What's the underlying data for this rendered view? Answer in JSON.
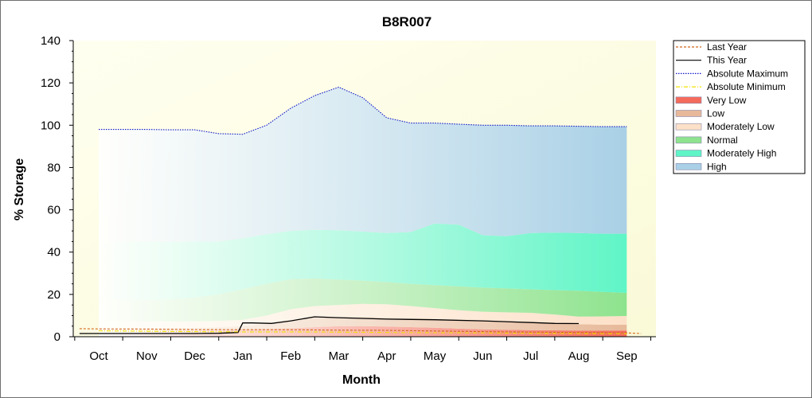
{
  "chart_data": {
    "type": "area",
    "title": "B8R007",
    "xlabel": "Month",
    "ylabel": "% Storage",
    "ylim": [
      0,
      140
    ],
    "yticks": [
      "0",
      "20",
      "40",
      "60",
      "80",
      "100",
      "120",
      "140"
    ],
    "categories": [
      "Oct",
      "Nov",
      "Dec",
      "Jan",
      "Feb",
      "Mar",
      "Apr",
      "May",
      "Jun",
      "Jul",
      "Aug",
      "Sep"
    ],
    "x": [
      0,
      0.5,
      1,
      1.5,
      2,
      2.5,
      3,
      3.5,
      4,
      4.5,
      5,
      5.5,
      6,
      6.5,
      7,
      7.5,
      8,
      8.5,
      9,
      9.5,
      10,
      10.5,
      11
    ],
    "bands": [
      {
        "name": "Very Low",
        "lower": [
          0,
          0,
          0,
          0,
          0,
          0,
          0,
          0,
          0,
          0,
          0,
          0,
          0,
          0,
          0,
          0,
          0,
          0,
          0,
          0,
          0,
          0,
          0
        ],
        "upper": [
          3.5,
          3.3,
          3.2,
          3.2,
          3.2,
          3.3,
          3.4,
          3.6,
          4,
          4.5,
          5,
          5,
          4.8,
          4.5,
          4.2,
          3.8,
          3.5,
          3.3,
          3.1,
          3,
          2.9,
          2.9,
          2.9
        ],
        "color": "#f46b5c"
      },
      {
        "name": "Low",
        "lower": [
          3.5,
          3.3,
          3.2,
          3.2,
          3.2,
          3.3,
          3.4,
          3.6,
          4,
          4.5,
          5,
          5,
          4.8,
          4.5,
          4.2,
          3.8,
          3.5,
          3.3,
          3.1,
          3,
          2.9,
          2.9,
          2.9
        ],
        "upper": [
          4.5,
          4.3,
          4.2,
          4.2,
          4.2,
          4.5,
          5,
          6,
          7.5,
          9,
          9.3,
          9.3,
          9,
          8.7,
          8.4,
          8,
          7.6,
          7.1,
          6.7,
          6.2,
          5.9,
          5.7,
          5.7
        ],
        "color": "#e7b99a"
      },
      {
        "name": "Moderately Low",
        "lower": [
          4.5,
          4.3,
          4.2,
          4.2,
          4.2,
          4.5,
          5,
          6,
          7.5,
          9,
          9.3,
          9.3,
          9,
          8.7,
          8.4,
          8,
          7.6,
          7.1,
          6.7,
          6.2,
          5.9,
          5.7,
          5.7
        ],
        "upper": [
          8,
          7.5,
          7.2,
          7.2,
          7.3,
          7.5,
          8,
          10,
          13,
          14.5,
          15,
          15.5,
          15.3,
          14.5,
          13.5,
          12.5,
          11.8,
          11.5,
          11.3,
          10.5,
          9.5,
          9.6,
          9.8
        ],
        "color": "#fde0c8"
      },
      {
        "name": "Normal",
        "lower": [
          8,
          7.5,
          7.2,
          7.2,
          7.3,
          7.5,
          8,
          10,
          13,
          14.5,
          15,
          15.5,
          15.3,
          14.5,
          13.5,
          12.5,
          11.8,
          11.5,
          11.3,
          10.5,
          9.5,
          9.6,
          9.8
        ],
        "upper": [
          18.5,
          17.5,
          17.3,
          17.5,
          18.5,
          20,
          22.5,
          25,
          27.2,
          27.5,
          27,
          26.5,
          25.8,
          25,
          24.4,
          23.8,
          23.2,
          22.8,
          22.4,
          22,
          21.7,
          21.2,
          20.7
        ],
        "color": "#8ee38e"
      },
      {
        "name": "Moderately High",
        "lower": [
          18.5,
          17.5,
          17.3,
          17.5,
          18.5,
          20,
          22.5,
          25,
          27.2,
          27.5,
          27,
          26.5,
          25.8,
          25,
          24.4,
          23.8,
          23.2,
          22.8,
          22.4,
          22,
          21.7,
          21.2,
          20.7
        ],
        "upper": [
          43.5,
          45,
          45,
          44.8,
          45,
          45,
          46.5,
          48.5,
          50,
          50.5,
          50.3,
          49.7,
          49,
          49.5,
          53.5,
          53,
          48,
          47.5,
          49,
          49.2,
          49,
          48.7,
          48.7
        ],
        "color": "#5ff5c6"
      },
      {
        "name": "High",
        "lower": [
          43.5,
          45,
          45,
          44.8,
          45,
          45,
          46.5,
          48.5,
          50,
          50.5,
          50.3,
          49.7,
          49,
          49.5,
          53.5,
          53,
          48,
          47.5,
          49,
          49.2,
          49,
          48.7,
          48.7
        ],
        "upper": [
          98,
          98,
          98,
          97.8,
          97.8,
          96,
          95.7,
          100,
          108,
          114,
          118,
          113,
          103.5,
          101,
          101,
          100.5,
          100,
          100,
          99.7,
          99.7,
          99.5,
          99.3,
          99.3
        ],
        "color": "#a9d0e6"
      }
    ],
    "series": [
      {
        "name": "Last Year",
        "x": [
          -0.4,
          0,
          1,
          2,
          3,
          4,
          5,
          6,
          7,
          8,
          9,
          10,
          11,
          11.3
        ],
        "values": [
          3.8,
          3.7,
          3.6,
          3.4,
          3.3,
          3.3,
          3.1,
          3,
          2.7,
          2.4,
          2.2,
          2,
          1.8,
          1.5
        ],
        "color": "#d2661a",
        "style": "dashed"
      },
      {
        "name": "This Year",
        "x": [
          -0.4,
          0,
          1,
          2,
          2.5,
          2.9,
          3,
          3.2,
          3.6,
          4,
          4.5,
          5,
          6,
          7,
          8,
          9,
          9.5,
          10
        ],
        "values": [
          1.5,
          1.5,
          1.5,
          1.5,
          1.6,
          2,
          6.5,
          6.5,
          6.3,
          7.5,
          9.4,
          9,
          8.3,
          8,
          7.5,
          6.7,
          6.3,
          6.2
        ],
        "color": "#000000",
        "style": "solid"
      },
      {
        "name": "Absolute Maximum",
        "x": [
          0,
          0.5,
          1,
          1.5,
          2,
          2.5,
          3,
          3.5,
          4,
          4.5,
          5,
          5.5,
          6,
          6.5,
          7,
          7.5,
          8,
          8.5,
          9,
          9.5,
          10,
          10.5,
          11
        ],
        "values": [
          98,
          98,
          98,
          97.8,
          97.8,
          96,
          95.7,
          100,
          108,
          114,
          118,
          113,
          103.5,
          101,
          101,
          100.5,
          100,
          100,
          99.7,
          99.7,
          99.5,
          99.3,
          99.3
        ],
        "color": "#1018c8",
        "style": "dotted"
      },
      {
        "name": "Absolute Minimum",
        "x": [
          0,
          1,
          2,
          3,
          4,
          5,
          6,
          7,
          8,
          9,
          10,
          11
        ],
        "values": [
          2.8,
          2.6,
          2.4,
          2.3,
          2.3,
          2.2,
          2,
          1.9,
          1.8,
          1.6,
          1.5,
          1.4
        ],
        "color": "#f0e000",
        "style": "dashdot"
      }
    ],
    "legend": {
      "placement": "right",
      "entries": [
        "Last Year",
        "This Year",
        "Absolute Maximum",
        "Absolute Minimum",
        "Very Low",
        "Low",
        "Moderately Low",
        "Normal",
        "Moderately High",
        "High"
      ]
    },
    "grid": false
  }
}
